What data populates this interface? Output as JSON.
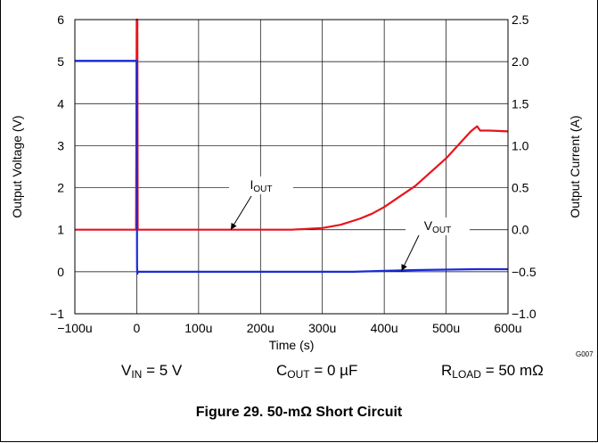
{
  "chart_data": {
    "type": "line",
    "xlabel": "Time (s)",
    "ylabel_left": "Output Voltage (V)",
    "ylabel_right": "Output Current (A)",
    "x_ticks": [
      "−100u",
      "0",
      "100u",
      "200u",
      "300u",
      "400u",
      "500u",
      "600u"
    ],
    "y_left_ticks": [
      "6",
      "5",
      "4",
      "3",
      "2",
      "1",
      "0",
      "−1"
    ],
    "y_right_ticks": [
      "2.5",
      "2.0",
      "1.5",
      "1.0",
      "0.5",
      "0.0",
      "−0.5",
      "−1.0"
    ],
    "xlim_us": [
      -100,
      600
    ],
    "ylim_left": [
      -1,
      6
    ],
    "ylim_right": [
      -1.0,
      2.5
    ],
    "grid": true,
    "series": [
      {
        "name": "IOUT",
        "axis": "right",
        "color": "#e8141c",
        "points_us": [
          [
            -100,
            0.0
          ],
          [
            -1,
            0.0
          ],
          [
            0,
            2.5
          ],
          [
            1,
            2.5
          ],
          [
            1.5,
            0.0
          ],
          [
            50,
            0.0
          ],
          [
            150,
            0.0
          ],
          [
            250,
            0.0
          ],
          [
            300,
            0.02
          ],
          [
            330,
            0.06
          ],
          [
            360,
            0.13
          ],
          [
            380,
            0.19
          ],
          [
            400,
            0.27
          ],
          [
            420,
            0.37
          ],
          [
            450,
            0.52
          ],
          [
            500,
            0.85
          ],
          [
            540,
            1.17
          ],
          [
            550,
            1.23
          ],
          [
            555,
            1.18
          ],
          [
            570,
            1.18
          ],
          [
            600,
            1.17
          ]
        ]
      },
      {
        "name": "VOUT",
        "axis": "left",
        "color": "#1a2bd6",
        "points_us": [
          [
            -100,
            5.02
          ],
          [
            -1,
            5.02
          ],
          [
            0,
            5.02
          ],
          [
            0.5,
            0.1
          ],
          [
            1,
            -0.05
          ],
          [
            2,
            0.0
          ],
          [
            50,
            0.0
          ],
          [
            150,
            0.0
          ],
          [
            250,
            0.0
          ],
          [
            350,
            0.0
          ],
          [
            400,
            0.02
          ],
          [
            450,
            0.04
          ],
          [
            500,
            0.05
          ],
          [
            550,
            0.06
          ],
          [
            600,
            0.06
          ]
        ]
      }
    ],
    "annotations": [
      {
        "label": "I",
        "sub": "OUT",
        "series": "IOUT"
      },
      {
        "label": "V",
        "sub": "OUT",
        "series": "VOUT"
      }
    ]
  },
  "conditions": {
    "vin": {
      "main": "V",
      "sub": "IN",
      "rest": " = 5 V"
    },
    "cout": {
      "main": "C",
      "sub": "OUT",
      "rest": " = 0 µF"
    },
    "rload": {
      "main": "R",
      "sub": "LOAD",
      "rest": " = 50 mΩ"
    }
  },
  "graph_id": "G007",
  "caption": "Figure 29. 50-mΩ Short Circuit"
}
